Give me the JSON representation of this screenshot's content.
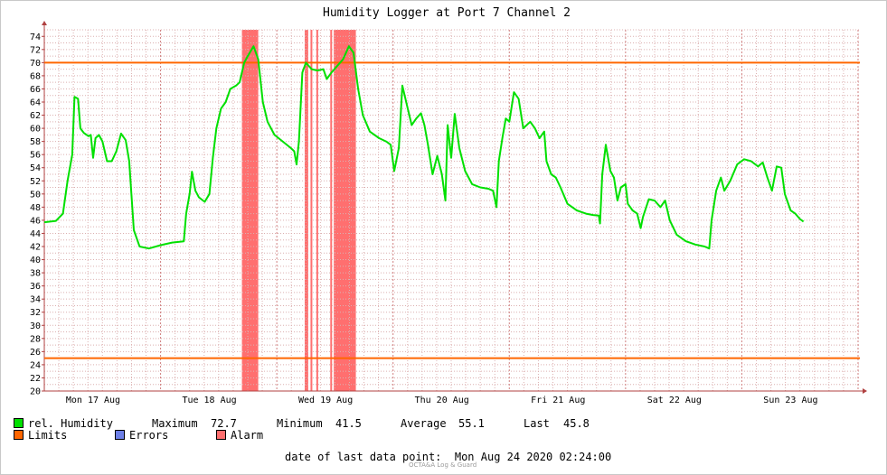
{
  "chart_data": {
    "type": "line",
    "title": "Humidity Logger at Port 7 Channel 2",
    "ylim": [
      20,
      75
    ],
    "yticks": [
      20,
      22,
      24,
      26,
      28,
      30,
      32,
      34,
      36,
      38,
      40,
      42,
      44,
      46,
      48,
      50,
      52,
      54,
      56,
      58,
      60,
      62,
      64,
      66,
      68,
      70,
      72,
      74
    ],
    "xlim_days": [
      0,
      7.0
    ],
    "day_labels": [
      "Mon 17 Aug",
      "Tue 18 Aug",
      "Wed 19 Aug",
      "Thu 20 Aug",
      "Fri 21 Aug",
      "Sat 22 Aug",
      "Sun 23 Aug"
    ],
    "limits": [
      70,
      25
    ],
    "alarm_bands": [
      [
        1.7,
        1.84
      ],
      [
        2.24,
        2.27
      ],
      [
        2.29,
        2.3
      ],
      [
        2.34,
        2.35
      ],
      [
        2.46,
        2.47
      ],
      [
        2.49,
        2.68
      ]
    ],
    "series": [
      {
        "name": "rel. Humidity",
        "color": "#00e000",
        "points": [
          [
            0.0,
            45.7
          ],
          [
            0.1,
            45.9
          ],
          [
            0.16,
            47.0
          ],
          [
            0.2,
            52.0
          ],
          [
            0.24,
            56.0
          ],
          [
            0.26,
            64.8
          ],
          [
            0.29,
            64.5
          ],
          [
            0.31,
            60.0
          ],
          [
            0.34,
            59.3
          ],
          [
            0.38,
            58.8
          ],
          [
            0.4,
            59.0
          ],
          [
            0.42,
            55.5
          ],
          [
            0.44,
            58.5
          ],
          [
            0.47,
            59.0
          ],
          [
            0.5,
            58.0
          ],
          [
            0.54,
            55.0
          ],
          [
            0.58,
            55.0
          ],
          [
            0.62,
            56.5
          ],
          [
            0.66,
            59.2
          ],
          [
            0.7,
            58.2
          ],
          [
            0.73,
            55.0
          ],
          [
            0.77,
            44.5
          ],
          [
            0.82,
            42.0
          ],
          [
            0.9,
            41.7
          ],
          [
            1.0,
            42.2
          ],
          [
            1.1,
            42.6
          ],
          [
            1.2,
            42.8
          ],
          [
            1.22,
            47.0
          ],
          [
            1.25,
            50.0
          ],
          [
            1.27,
            53.4
          ],
          [
            1.3,
            50.5
          ],
          [
            1.33,
            49.5
          ],
          [
            1.38,
            48.8
          ],
          [
            1.42,
            50.0
          ],
          [
            1.45,
            55.5
          ],
          [
            1.48,
            60.0
          ],
          [
            1.52,
            63.0
          ],
          [
            1.56,
            64.0
          ],
          [
            1.6,
            66.0
          ],
          [
            1.65,
            66.5
          ],
          [
            1.68,
            67.0
          ],
          [
            1.72,
            70.0
          ],
          [
            1.75,
            71.0
          ],
          [
            1.8,
            72.5
          ],
          [
            1.84,
            70.5
          ],
          [
            1.88,
            64.0
          ],
          [
            1.92,
            61.0
          ],
          [
            1.98,
            59.0
          ],
          [
            2.05,
            58.0
          ],
          [
            2.12,
            57.0
          ],
          [
            2.15,
            56.5
          ],
          [
            2.17,
            54.5
          ],
          [
            2.19,
            58.0
          ],
          [
            2.22,
            68.5
          ],
          [
            2.25,
            70.0
          ],
          [
            2.3,
            69.0
          ],
          [
            2.35,
            68.8
          ],
          [
            2.4,
            69.0
          ],
          [
            2.43,
            67.5
          ],
          [
            2.47,
            68.5
          ],
          [
            2.52,
            69.5
          ],
          [
            2.57,
            70.5
          ],
          [
            2.62,
            72.5
          ],
          [
            2.66,
            71.5
          ],
          [
            2.7,
            66.0
          ],
          [
            2.74,
            62.0
          ],
          [
            2.8,
            59.5
          ],
          [
            2.88,
            58.5
          ],
          [
            2.94,
            58.0
          ],
          [
            2.98,
            57.5
          ],
          [
            3.01,
            53.5
          ],
          [
            3.05,
            57.0
          ],
          [
            3.08,
            66.5
          ],
          [
            3.12,
            63.5
          ],
          [
            3.16,
            60.5
          ],
          [
            3.2,
            61.5
          ],
          [
            3.24,
            62.3
          ],
          [
            3.27,
            60.5
          ],
          [
            3.3,
            57.5
          ],
          [
            3.34,
            53.0
          ],
          [
            3.38,
            55.8
          ],
          [
            3.42,
            53.0
          ],
          [
            3.45,
            49.0
          ],
          [
            3.47,
            60.5
          ],
          [
            3.5,
            55.5
          ],
          [
            3.53,
            62.2
          ],
          [
            3.57,
            57.0
          ],
          [
            3.62,
            53.5
          ],
          [
            3.68,
            51.5
          ],
          [
            3.75,
            51.0
          ],
          [
            3.82,
            50.8
          ],
          [
            3.86,
            50.5
          ],
          [
            3.89,
            48.0
          ],
          [
            3.91,
            55.0
          ],
          [
            3.94,
            58.5
          ],
          [
            3.97,
            61.5
          ],
          [
            4.0,
            61.0
          ],
          [
            4.04,
            65.5
          ],
          [
            4.08,
            64.5
          ],
          [
            4.12,
            60.0
          ],
          [
            4.18,
            61.0
          ],
          [
            4.22,
            60.0
          ],
          [
            4.26,
            58.5
          ],
          [
            4.3,
            59.5
          ],
          [
            4.32,
            55.0
          ],
          [
            4.36,
            53.0
          ],
          [
            4.4,
            52.5
          ],
          [
            4.44,
            51.0
          ],
          [
            4.5,
            48.5
          ],
          [
            4.58,
            47.5
          ],
          [
            4.66,
            47.0
          ],
          [
            4.72,
            46.8
          ],
          [
            4.77,
            46.7
          ],
          [
            4.78,
            45.5
          ],
          [
            4.8,
            53.0
          ],
          [
            4.83,
            57.5
          ],
          [
            4.87,
            53.5
          ],
          [
            4.9,
            52.5
          ],
          [
            4.93,
            49.0
          ],
          [
            4.96,
            51.0
          ],
          [
            5.0,
            51.5
          ],
          [
            5.02,
            48.5
          ],
          [
            5.06,
            47.5
          ],
          [
            5.1,
            47.0
          ],
          [
            5.13,
            44.8
          ],
          [
            5.15,
            46.5
          ],
          [
            5.2,
            49.2
          ],
          [
            5.25,
            49.0
          ],
          [
            5.3,
            48.0
          ],
          [
            5.34,
            49.0
          ],
          [
            5.38,
            46.0
          ],
          [
            5.44,
            43.8
          ],
          [
            5.52,
            42.8
          ],
          [
            5.6,
            42.3
          ],
          [
            5.68,
            42.0
          ],
          [
            5.72,
            41.7
          ],
          [
            5.74,
            46.0
          ],
          [
            5.78,
            50.5
          ],
          [
            5.82,
            52.5
          ],
          [
            5.85,
            50.5
          ],
          [
            5.9,
            52.0
          ],
          [
            5.96,
            54.5
          ],
          [
            6.02,
            55.3
          ],
          [
            6.08,
            55.0
          ],
          [
            6.14,
            54.2
          ],
          [
            6.18,
            54.8
          ],
          [
            6.22,
            52.5
          ],
          [
            6.26,
            50.5
          ],
          [
            6.3,
            54.2
          ],
          [
            6.34,
            54.0
          ],
          [
            6.37,
            50.0
          ],
          [
            6.42,
            47.5
          ],
          [
            6.46,
            47.0
          ],
          [
            6.5,
            46.2
          ],
          [
            6.53,
            45.8
          ]
        ]
      }
    ],
    "legend": {
      "series_label": "rel. Humidity",
      "max_label": "Maximum",
      "max_value": "72.7",
      "min_label": "Minimum",
      "min_value": "41.5",
      "avg_label": "Average",
      "avg_value": "55.1",
      "last_label": "Last",
      "last_value": "45.8",
      "limits_label": "Limits",
      "errors_label": "Errors",
      "alarm_label": "Alarm"
    },
    "colors": {
      "humidity": "#00e000",
      "limits": "#ff6600",
      "errors": "#6d7fe6",
      "alarm": "#ff6f6f",
      "grid": "#dcb0b0"
    }
  },
  "footer": {
    "label": "date of last data point:",
    "value": "Mon Aug 24 2020 02:24:00"
  },
  "credit": "OCTA&A Log & Guard"
}
